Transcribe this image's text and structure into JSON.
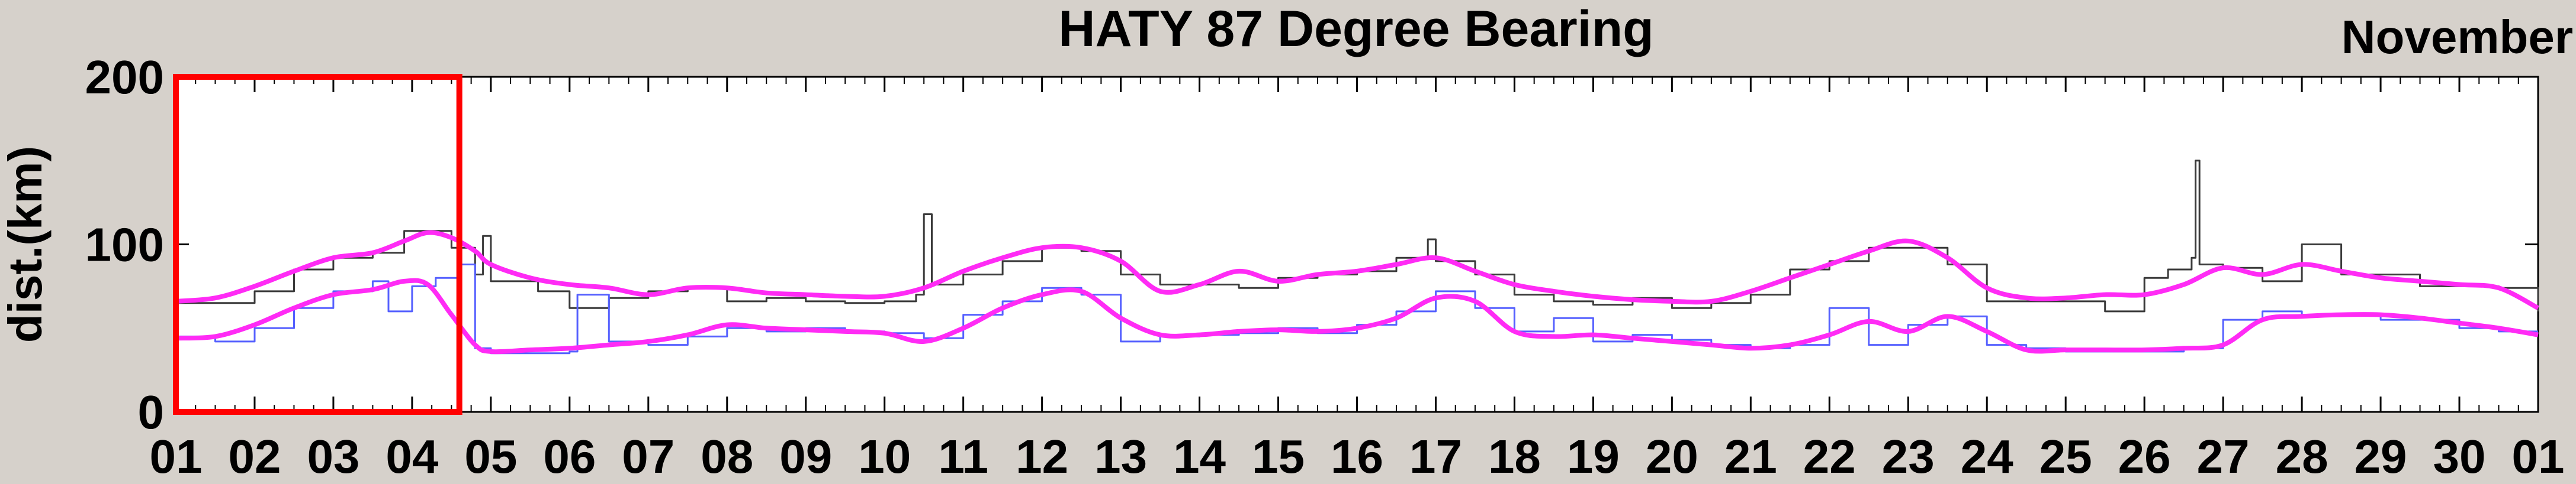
{
  "chart_data": {
    "type": "line",
    "title": "HATY 87 Degree Bearing",
    "corner_label": "November",
    "ylabel": "dist.(km)",
    "ylim": [
      0,
      200
    ],
    "yticks": [
      0,
      100,
      200
    ],
    "xlim": [
      1,
      31
    ],
    "xtick_labels": [
      "01",
      "02",
      "03",
      "04",
      "05",
      "06",
      "07",
      "08",
      "09",
      "10",
      "11",
      "12",
      "13",
      "14",
      "15",
      "16",
      "17",
      "18",
      "19",
      "20",
      "21",
      "22",
      "23",
      "24",
      "25",
      "26",
      "27",
      "28",
      "29",
      "30",
      "01"
    ],
    "grid": false,
    "highlight_box": {
      "x_range": [
        1,
        4.6
      ],
      "y_range": [
        0,
        200
      ],
      "color": "#ff0000"
    },
    "series": [
      {
        "color": "#3a3a3a",
        "style": "step",
        "x": [
          1.0,
          1.5,
          2.0,
          2.5,
          3.0,
          3.5,
          3.9,
          4.2,
          4.5,
          4.8,
          4.9,
          5.0,
          5.3,
          5.6,
          6.0,
          6.5,
          7.0,
          7.5,
          8.0,
          8.5,
          9.0,
          9.5,
          10.0,
          10.4,
          10.5,
          10.6,
          11.0,
          11.5,
          12.0,
          12.5,
          13.0,
          13.5,
          14.0,
          14.5,
          15.0,
          15.5,
          16.0,
          16.5,
          16.9,
          17.0,
          17.5,
          18.0,
          18.5,
          19.0,
          19.5,
          20.0,
          20.5,
          21.0,
          21.5,
          22.0,
          22.5,
          23.0,
          23.5,
          24.0,
          24.5,
          25.0,
          25.5,
          26.0,
          26.3,
          26.6,
          26.65,
          26.7,
          27.0,
          27.5,
          28.0,
          28.5,
          29.0,
          29.5,
          30.0,
          30.5,
          31.0
        ],
        "y": [
          65,
          65,
          72,
          85,
          92,
          95,
          108,
          108,
          98,
          82,
          105,
          78,
          78,
          72,
          62,
          68,
          72,
          74,
          66,
          68,
          66,
          65,
          66,
          70,
          118,
          76,
          82,
          90,
          98,
          96,
          82,
          76,
          76,
          74,
          80,
          82,
          84,
          92,
          103,
          90,
          82,
          70,
          66,
          64,
          68,
          62,
          65,
          70,
          85,
          90,
          98,
          98,
          88,
          66,
          66,
          66,
          60,
          80,
          85,
          92,
          150,
          88,
          86,
          78,
          100,
          82,
          82,
          75,
          75,
          74,
          60
        ]
      },
      {
        "color": "#5560ff",
        "style": "step",
        "x": [
          1.0,
          1.5,
          2.0,
          2.5,
          3.0,
          3.5,
          3.7,
          4.0,
          4.3,
          4.6,
          4.8,
          5.0,
          5.5,
          6.0,
          6.1,
          6.5,
          7.0,
          7.5,
          8.0,
          8.5,
          9.0,
          9.5,
          10.0,
          10.5,
          11.0,
          11.5,
          12.0,
          12.5,
          13.0,
          13.5,
          14.0,
          14.5,
          15.0,
          15.5,
          16.0,
          16.5,
          17.0,
          17.5,
          18.0,
          18.5,
          19.0,
          19.5,
          20.0,
          20.5,
          21.0,
          21.5,
          22.0,
          22.5,
          23.0,
          23.5,
          24.0,
          24.5,
          25.0,
          25.5,
          26.0,
          26.5,
          27.0,
          27.5,
          28.0,
          28.5,
          29.0,
          29.5,
          30.0,
          30.5,
          31.0
        ],
        "y": [
          45,
          42,
          50,
          62,
          72,
          78,
          60,
          75,
          80,
          88,
          38,
          35,
          35,
          36,
          70,
          42,
          40,
          45,
          50,
          48,
          50,
          48,
          47,
          44,
          58,
          66,
          74,
          70,
          42,
          45,
          46,
          47,
          50,
          47,
          52,
          60,
          72,
          62,
          48,
          56,
          42,
          46,
          43,
          40,
          38,
          40,
          62,
          40,
          52,
          57,
          40,
          38,
          36,
          36,
          36,
          38,
          55,
          60,
          58,
          58,
          55,
          55,
          50,
          48,
          48
        ]
      },
      {
        "color": "#ff2bf5",
        "style": "smooth",
        "x": [
          1.0,
          1.5,
          2.0,
          2.5,
          3.0,
          3.5,
          3.9,
          4.2,
          4.5,
          4.8,
          5.0,
          5.5,
          6.0,
          6.5,
          7.0,
          7.5,
          8.0,
          8.5,
          9.0,
          9.5,
          10.0,
          10.5,
          11.0,
          11.5,
          12.0,
          12.5,
          13.0,
          13.5,
          14.0,
          14.5,
          15.0,
          15.5,
          16.0,
          16.5,
          17.0,
          17.5,
          18.0,
          18.5,
          19.0,
          19.5,
          20.0,
          20.5,
          21.0,
          21.5,
          22.0,
          22.5,
          23.0,
          23.5,
          24.0,
          24.5,
          25.0,
          25.5,
          26.0,
          26.5,
          27.0,
          27.5,
          28.0,
          28.5,
          29.0,
          29.5,
          30.0,
          30.5,
          31.0
        ],
        "y": [
          66,
          68,
          75,
          84,
          92,
          95,
          102,
          107,
          104,
          96,
          88,
          80,
          76,
          74,
          70,
          74,
          74,
          71,
          70,
          69,
          69,
          74,
          84,
          92,
          98,
          98,
          90,
          72,
          76,
          84,
          78,
          82,
          84,
          88,
          92,
          84,
          76,
          72,
          69,
          67,
          66,
          66,
          72,
          80,
          88,
          96,
          102,
          92,
          74,
          68,
          68,
          70,
          70,
          76,
          86,
          82,
          88,
          84,
          80,
          78,
          76,
          74,
          62
        ]
      },
      {
        "color": "#ff2bf5",
        "style": "smooth",
        "x": [
          1.0,
          1.5,
          2.0,
          2.5,
          3.0,
          3.5,
          3.9,
          4.2,
          4.5,
          4.8,
          5.0,
          5.5,
          6.0,
          6.5,
          7.0,
          7.5,
          8.0,
          8.5,
          9.0,
          9.5,
          10.0,
          10.5,
          11.0,
          11.5,
          12.0,
          12.5,
          13.0,
          13.5,
          14.0,
          14.5,
          15.0,
          15.5,
          16.0,
          16.5,
          17.0,
          17.5,
          18.0,
          18.5,
          19.0,
          19.5,
          20.0,
          20.5,
          21.0,
          21.5,
          22.0,
          22.5,
          23.0,
          23.5,
          24.0,
          24.5,
          25.0,
          25.5,
          26.0,
          26.5,
          27.0,
          27.5,
          28.0,
          28.5,
          29.0,
          29.5,
          30.0,
          30.5,
          31.0
        ],
        "y": [
          44,
          45,
          52,
          62,
          70,
          73,
          78,
          76,
          58,
          40,
          36,
          37,
          38,
          40,
          42,
          46,
          52,
          50,
          49,
          48,
          47,
          42,
          50,
          62,
          70,
          72,
          56,
          46,
          46,
          48,
          49,
          48,
          50,
          56,
          68,
          66,
          48,
          45,
          46,
          44,
          42,
          40,
          38,
          40,
          46,
          54,
          48,
          57,
          48,
          37,
          37,
          37,
          37,
          38,
          40,
          55,
          57,
          58,
          58,
          56,
          53,
          50,
          46
        ]
      }
    ]
  }
}
